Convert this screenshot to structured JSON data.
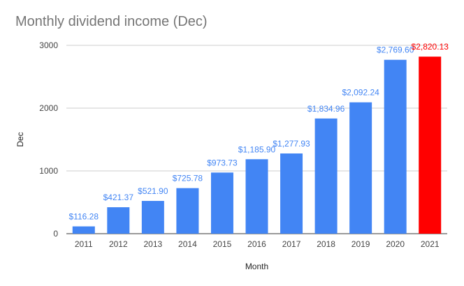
{
  "chart_data": {
    "type": "bar",
    "title": "Monthly dividend income (Dec)",
    "xlabel": "Month",
    "ylabel": "Dec",
    "categories": [
      "2011",
      "2012",
      "2013",
      "2014",
      "2015",
      "2016",
      "2017",
      "2018",
      "2019",
      "2020",
      "2021"
    ],
    "values": [
      116.28,
      421.37,
      521.9,
      725.78,
      973.73,
      1185.9,
      1277.93,
      1834.96,
      2092.24,
      2769.6,
      2820.13
    ],
    "data_labels": [
      "$116.28",
      "$421.37",
      "$521.90",
      "$725.78",
      "$973.73",
      "$1,185.90",
      "$1,277.93",
      "$1,834.96",
      "$2,092.24",
      "$2,769.60",
      "$2,820.13"
    ],
    "ylim": [
      0,
      3000
    ],
    "yticks": [
      0,
      1000,
      2000,
      3000
    ],
    "ytick_labels": [
      "0",
      "1000",
      "2000",
      "3000"
    ],
    "grid": true,
    "legend": "none",
    "colors": {
      "default_bar": "#4285F4",
      "highlight_bar": "#FF0000",
      "default_label": "#4285F4",
      "highlight_label": "#FF0000",
      "highlight_index": 10
    }
  }
}
